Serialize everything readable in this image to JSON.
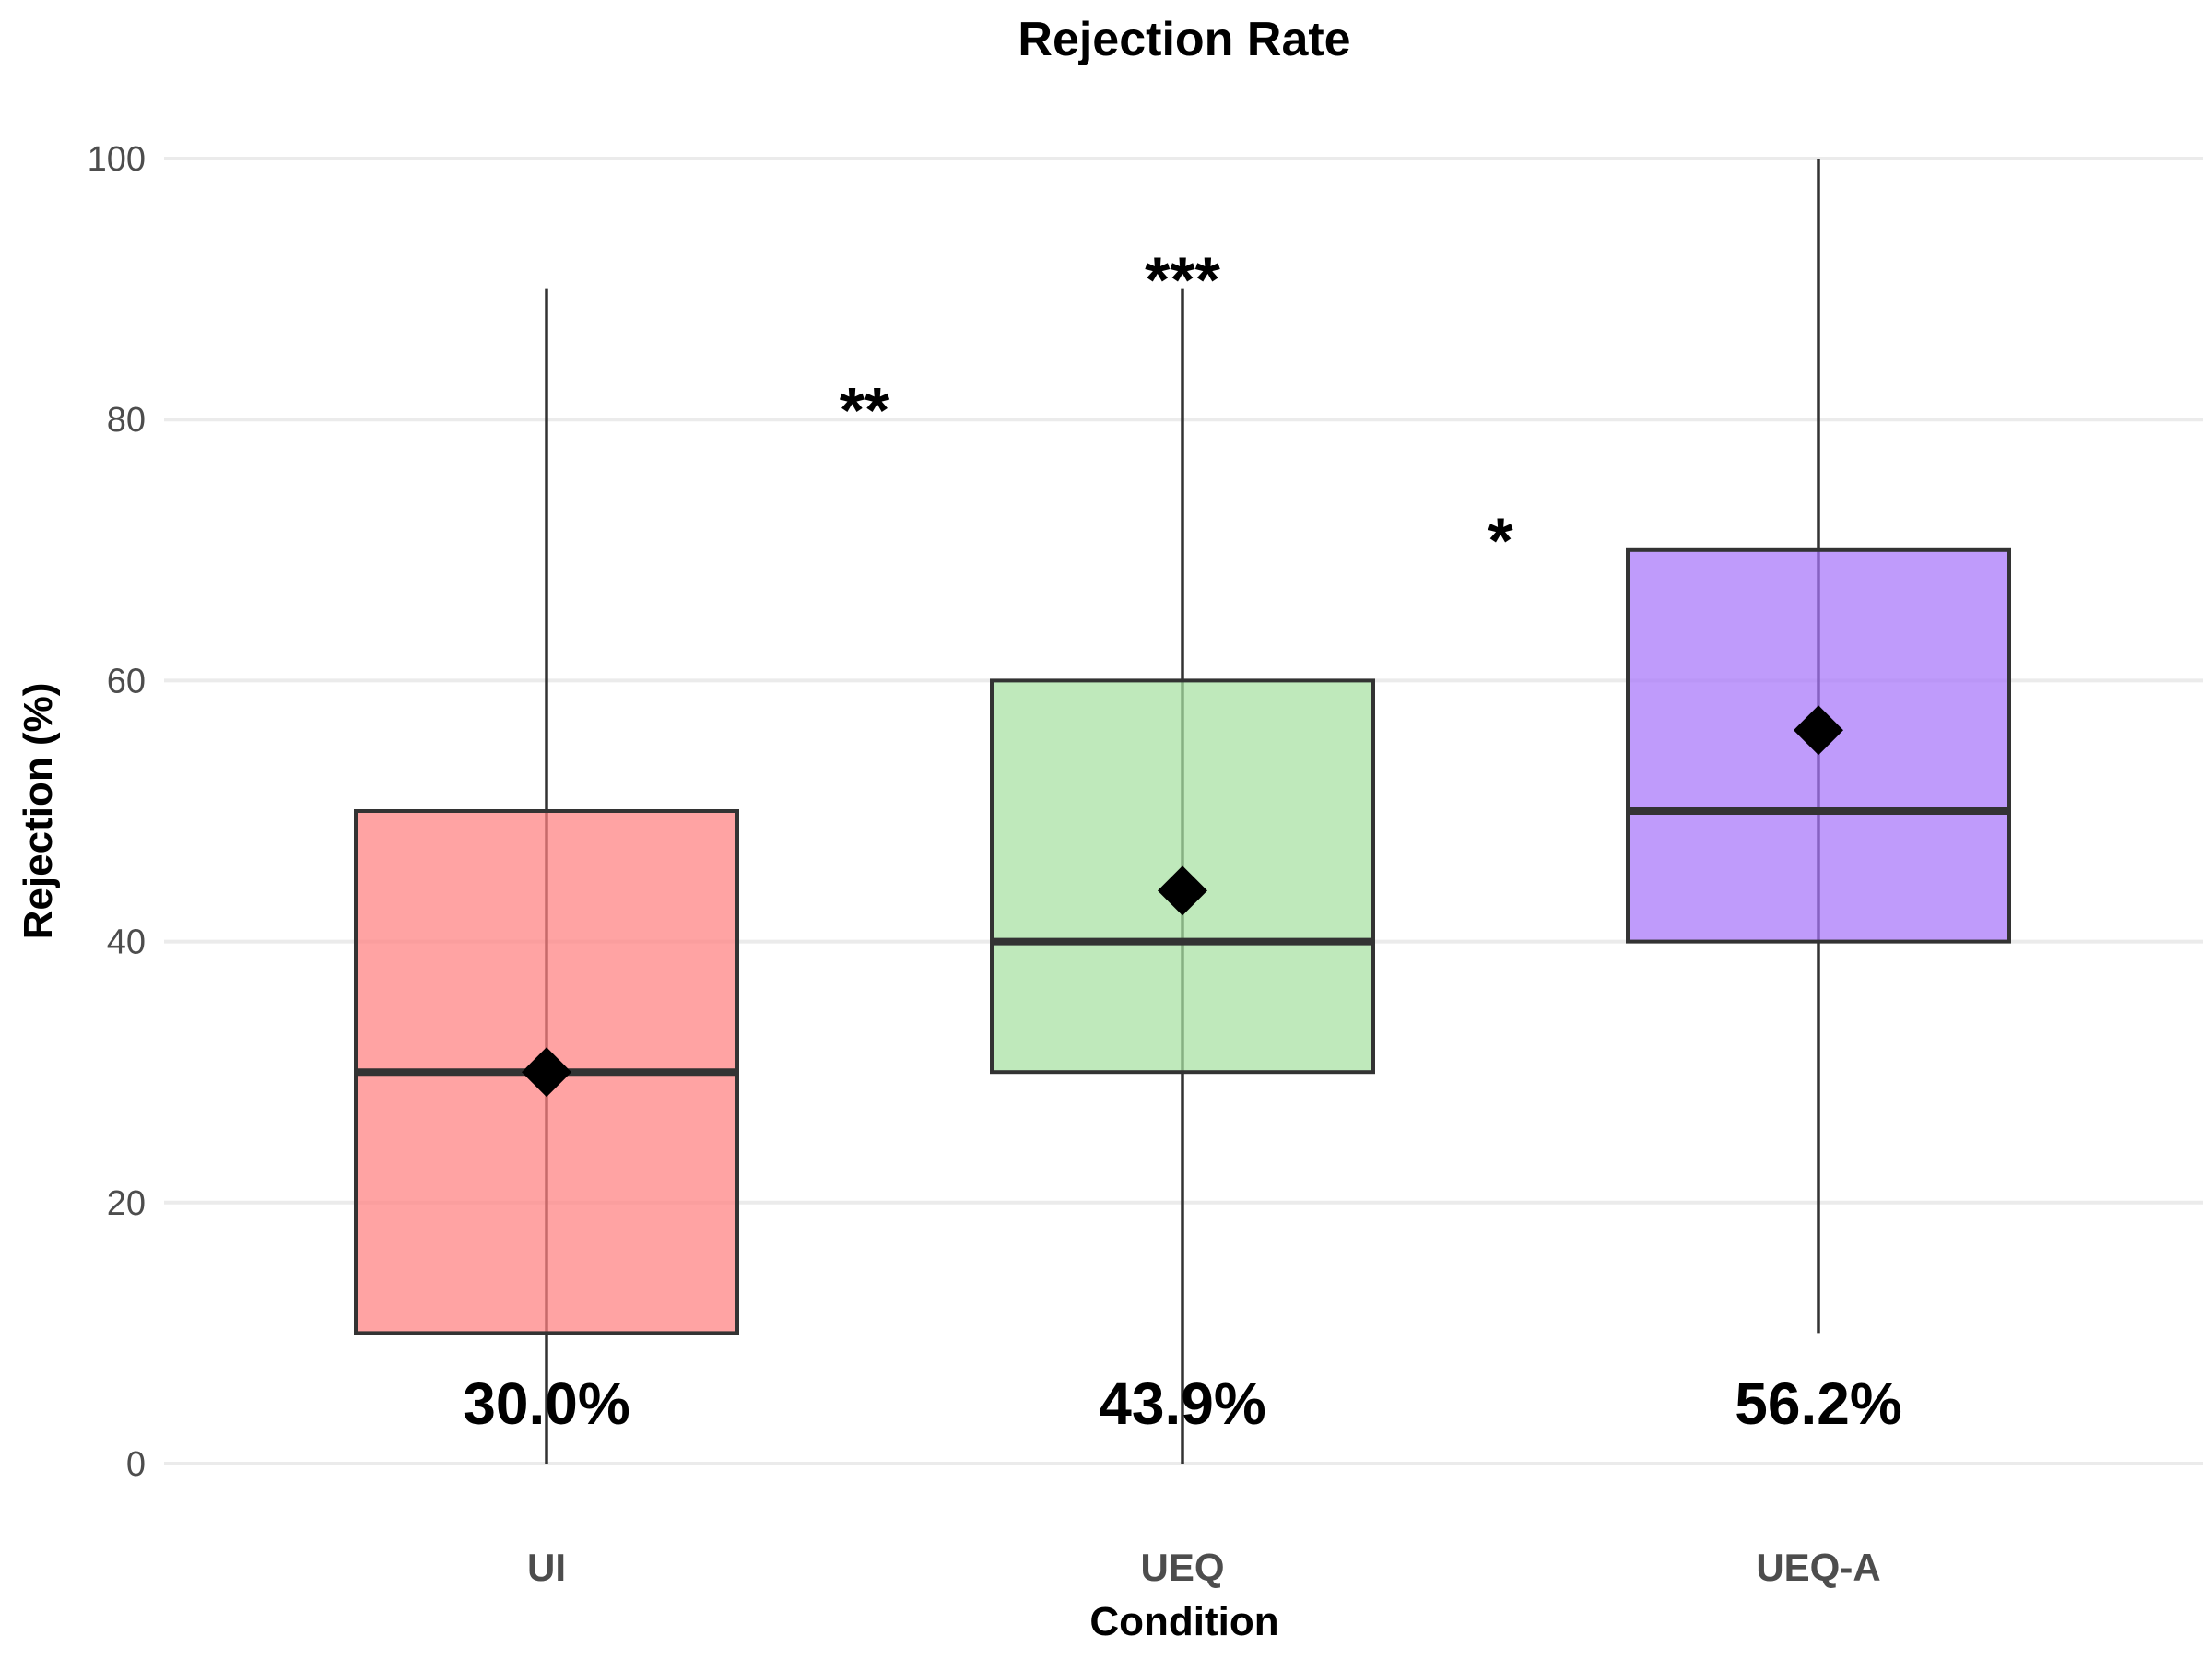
{
  "chart_data": {
    "type": "boxplot",
    "title": "Rejection Rate",
    "xlabel": "Condition",
    "ylabel": "Rejection (%)",
    "ylim": [
      0,
      100
    ],
    "yticks": [
      0,
      20,
      40,
      60,
      80,
      100
    ],
    "grid": true,
    "legend": "none",
    "categories": [
      "UI",
      "UEQ",
      "UEQ-A"
    ],
    "boxes": [
      {
        "category": "UI",
        "whisker_low": 0,
        "q1": 10,
        "median": 30,
        "q3": 50,
        "whisker_high": 90,
        "mean": 30.0,
        "mean_label": "30.0%",
        "color": "#ff8080"
      },
      {
        "category": "UEQ",
        "whisker_low": 0,
        "q1": 30,
        "median": 40,
        "q3": 60,
        "whisker_high": 90,
        "mean": 43.9,
        "mean_label": "43.9%",
        "color": "#a6e0a1"
      },
      {
        "category": "UEQ-A",
        "whisker_low": 10,
        "q1": 40,
        "median": 50,
        "q3": 70,
        "whisker_high": 100,
        "mean": 56.2,
        "mean_label": "56.2%",
        "color": "#a674fa"
      }
    ],
    "significance": [
      {
        "label": "**",
        "between": [
          "UI",
          "UEQ"
        ],
        "y": 82
      },
      {
        "label": "***",
        "between": [
          "UEQ",
          "UEQ"
        ],
        "y": 92
      },
      {
        "label": "*",
        "between": [
          "UEQ",
          "UEQ-A"
        ],
        "y": 72
      }
    ]
  }
}
